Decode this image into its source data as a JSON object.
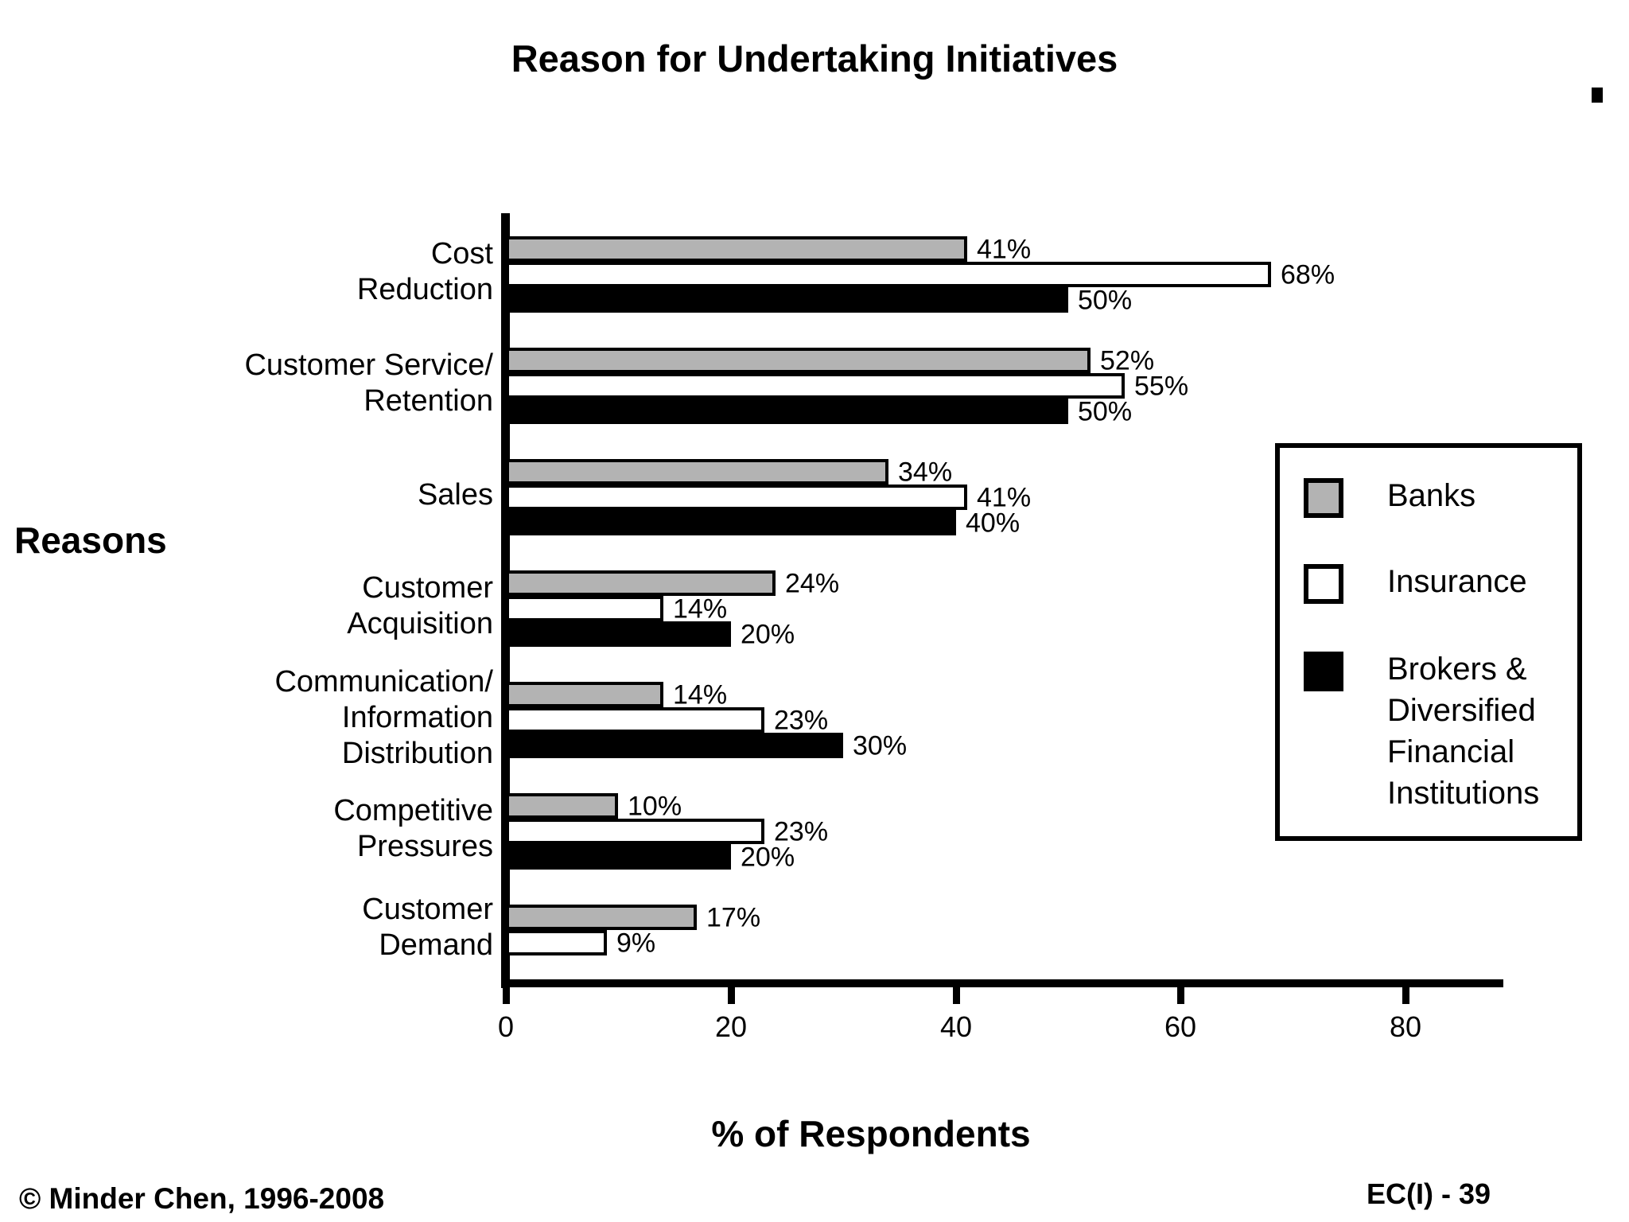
{
  "slide": {
    "title": "Reason for Undertaking Initiatives",
    "footer_left": "© Minder Chen, 1996-2008",
    "footer_right": "EC(I) - 39"
  },
  "chart_data": {
    "type": "bar",
    "orientation": "horizontal",
    "title": "Reason for Undertaking Initiatives",
    "xlabel": "% of Respondents",
    "ylabel": "Reasons",
    "xlim": [
      0,
      80
    ],
    "x_ticks": [
      0,
      20,
      40,
      60,
      80
    ],
    "grid": false,
    "legend_position": "right",
    "value_suffix": "%",
    "categories": [
      "Cost Reduction",
      "Customer Service/ Retention",
      "Sales",
      "Customer Acquisition",
      "Communication/ Information Distribution",
      "Competitive Pressures",
      "Customer Demand"
    ],
    "category_lines": [
      [
        "Cost",
        "Reduction"
      ],
      [
        "Customer Service/",
        "Retention"
      ],
      [
        "Sales"
      ],
      [
        "Customer",
        "Acquisition"
      ],
      [
        "Communication/",
        "Information",
        "Distribution"
      ],
      [
        "Competitive",
        "Pressures"
      ],
      [
        "Customer",
        "Demand"
      ]
    ],
    "series": [
      {
        "name": "Banks",
        "color": "#b3b3b3",
        "values": [
          41,
          52,
          34,
          24,
          14,
          10,
          17
        ]
      },
      {
        "name": "Insurance",
        "color": "#ffffff",
        "values": [
          68,
          55,
          41,
          14,
          23,
          23,
          9
        ]
      },
      {
        "name": "Brokers & Diversified Financial Institutions",
        "color": "#000000",
        "values": [
          50,
          50,
          40,
          20,
          30,
          20,
          null
        ]
      }
    ]
  }
}
